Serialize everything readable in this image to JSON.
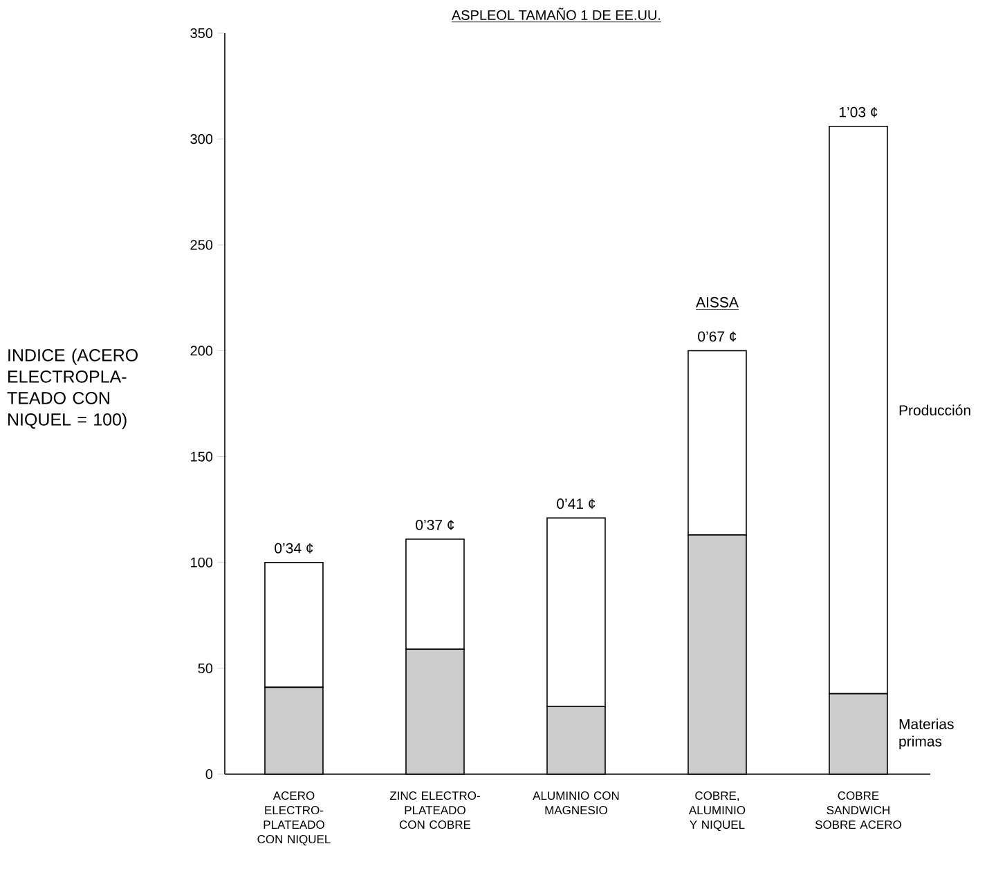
{
  "chart_data": {
    "type": "bar",
    "stacked": true,
    "title": "ASPLEOL TAMAÑO 1 DE EE.UU.",
    "ylabel": "INDICE (ACERO ELECTROPLA- TEADO CON NIQUEL = 100)",
    "categories": [
      "ACERO ELECTRO- PLATEADO CON NIQUEL",
      "ZINC ELECTRO- PLATEADO CON COBRE",
      "ALUMINIO CON MAGNESIO",
      "COBRE, ALUMINIO Y NIQUEL",
      "COBRE SANDWICH SOBRE ACERO"
    ],
    "series": [
      {
        "name": "Materias primas",
        "color": "#cccccc",
        "values": [
          41,
          59,
          32,
          113,
          38
        ]
      },
      {
        "name": "Producción",
        "color": "#ffffff",
        "values": [
          59,
          52,
          89,
          87,
          268
        ]
      }
    ],
    "totals": [
      "0’34 ¢",
      "0’37 ¢",
      "0’41 ¢",
      "0’67 ¢",
      "1’03 ¢"
    ],
    "annotations": [
      "AISSA"
    ],
    "ylim": [
      0,
      350
    ],
    "yticks": [
      0,
      50,
      100,
      150,
      200,
      250,
      300,
      350
    ]
  }
}
